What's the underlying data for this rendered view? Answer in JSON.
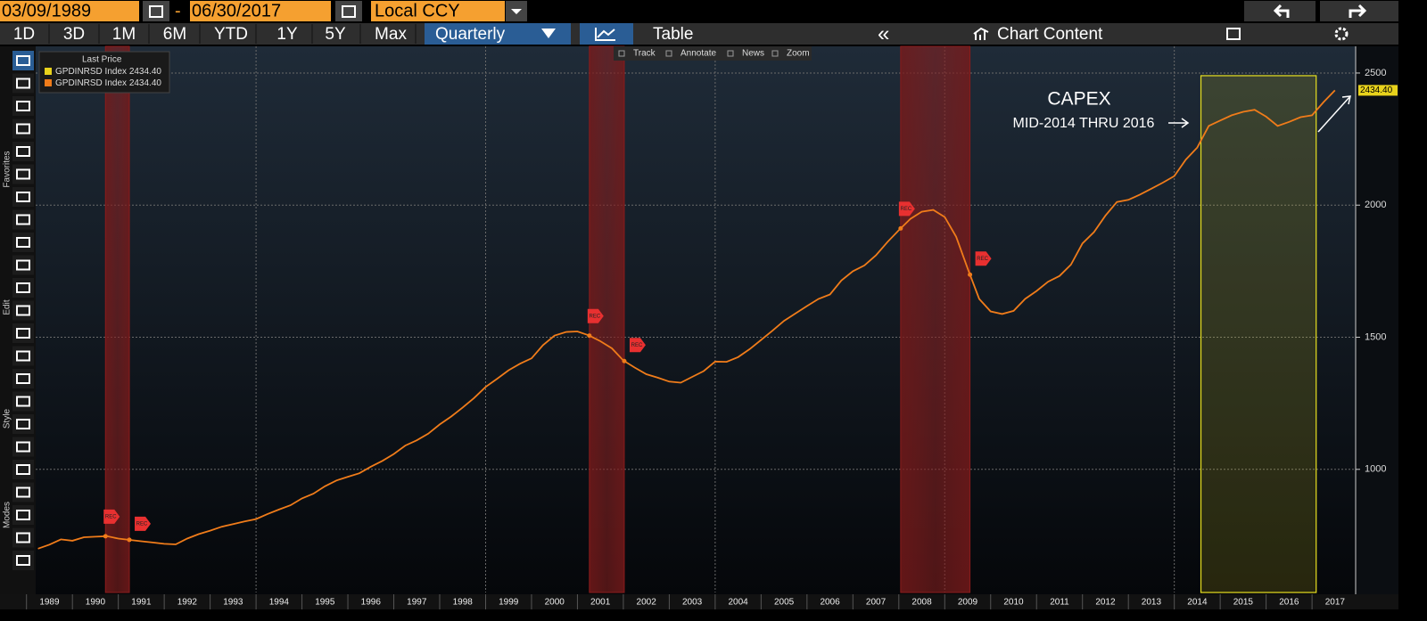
{
  "toolbar": {
    "start_date": "03/09/1989",
    "separator": "-",
    "end_date": "06/30/2017",
    "currency": "Local CCY",
    "periods": [
      "1D",
      "3D",
      "1M",
      "6M",
      "YTD",
      "1Y",
      "5Y",
      "Max"
    ],
    "frequency": "Quarterly",
    "view": "Table",
    "chart_content": "Chart Content"
  },
  "chart_tools": [
    "Track",
    "Annotate",
    "News",
    "Zoom"
  ],
  "sidebar": [
    "Favorites",
    "Edit",
    "Style",
    "Modes"
  ],
  "chart_data": {
    "type": "line",
    "legend": {
      "title": "Last Price",
      "entries": [
        {
          "name": "GPDINRSD Index",
          "color": "#e8d21c",
          "value_label": "2434.40"
        },
        {
          "name": "GPDINRSD Index",
          "color": "#f07c1a",
          "value_label": "2434.40"
        }
      ]
    },
    "annotations": [
      "CAPEX",
      "MID-2014 THRU 2016"
    ],
    "recession_label": "REC",
    "recessions": [
      [
        1990.72,
        1991.24
      ],
      [
        2001.26,
        2002.02
      ],
      [
        2008.04,
        2009.55
      ]
    ],
    "recession_color": "#8b1c1c",
    "highlight": [
      2014.58,
      2017.09
    ],
    "highlight_color": "#e8e020",
    "series": [
      {
        "name": "GPDINRSD Index",
        "color": "#f07c1a",
        "last_value_label": "2434.40",
        "x": [
          1989.25,
          1989.5,
          1989.75,
          1990,
          1990.25,
          1990.5,
          1990.75,
          1991,
          1991.25,
          1991.5,
          1991.75,
          1992,
          1992.25,
          1992.5,
          1992.75,
          1993,
          1993.25,
          1993.5,
          1993.75,
          1994,
          1994.25,
          1994.5,
          1994.75,
          1995,
          1995.25,
          1995.5,
          1995.75,
          1996,
          1996.25,
          1996.5,
          1996.75,
          1997,
          1997.25,
          1997.5,
          1997.75,
          1998,
          1998.25,
          1998.5,
          1998.75,
          1999,
          1999.25,
          1999.5,
          1999.75,
          2000,
          2000.25,
          2000.5,
          2000.75,
          2001,
          2001.25,
          2001.5,
          2001.75,
          2002,
          2002.25,
          2002.5,
          2002.75,
          2003,
          2003.25,
          2003.5,
          2003.75,
          2004,
          2004.25,
          2004.5,
          2004.75,
          2005,
          2005.25,
          2005.5,
          2005.75,
          2006,
          2006.25,
          2006.5,
          2006.75,
          2007,
          2007.25,
          2007.5,
          2007.75,
          2008,
          2008.25,
          2008.5,
          2008.75,
          2009,
          2009.25,
          2009.5,
          2009.75,
          2010,
          2010.25,
          2010.5,
          2010.75,
          2011,
          2011.25,
          2011.5,
          2011.75,
          2012,
          2012.25,
          2012.5,
          2012.75,
          2013,
          2013.25,
          2013.5,
          2013.75,
          2014,
          2014.25,
          2014.5,
          2014.75,
          2015,
          2015.25,
          2015.5,
          2015.75,
          2016,
          2016.25,
          2016.5,
          2016.75,
          2017,
          2017.25,
          2017.5
        ],
        "values": [
          700,
          715,
          735,
          730,
          743,
          745,
          747,
          738,
          733,
          728,
          723,
          718,
          716,
          738,
          755,
          768,
          783,
          793,
          803,
          812,
          831,
          848,
          864,
          890,
          908,
          936,
          958,
          972,
          985,
          1010,
          1032,
          1058,
          1090,
          1110,
          1135,
          1170,
          1200,
          1234,
          1270,
          1312,
          1343,
          1375,
          1400,
          1420,
          1470,
          1506,
          1520,
          1522,
          1507,
          1485,
          1458,
          1412,
          1385,
          1360,
          1347,
          1332,
          1328,
          1350,
          1372,
          1408,
          1407,
          1425,
          1455,
          1490,
          1525,
          1562,
          1590,
          1618,
          1645,
          1662,
          1715,
          1750,
          1772,
          1810,
          1860,
          1905,
          1948,
          1975,
          1982,
          1955,
          1880,
          1760,
          1645,
          1598,
          1588,
          1600,
          1645,
          1675,
          1710,
          1732,
          1775,
          1855,
          1898,
          1960,
          2012,
          2020,
          2040,
          2062,
          2085,
          2110,
          2172,
          2218,
          2300,
          2320,
          2340,
          2353,
          2361,
          2335,
          2300,
          2315,
          2333,
          2340,
          2390,
          2434.4
        ]
      }
    ],
    "xlim": [
      1989.2,
      2017.95
    ],
    "xticks": [
      1989,
      1990,
      1991,
      1992,
      1993,
      1994,
      1995,
      1996,
      1997,
      1998,
      1999,
      2000,
      2001,
      2002,
      2003,
      2004,
      2005,
      2006,
      2007,
      2008,
      2009,
      2010,
      2011,
      2012,
      2013,
      2014,
      2015,
      2016,
      2017
    ],
    "ylim": [
      534,
      2601
    ],
    "yticks": [
      1000,
      1500,
      2000,
      2500
    ],
    "grid": true
  }
}
